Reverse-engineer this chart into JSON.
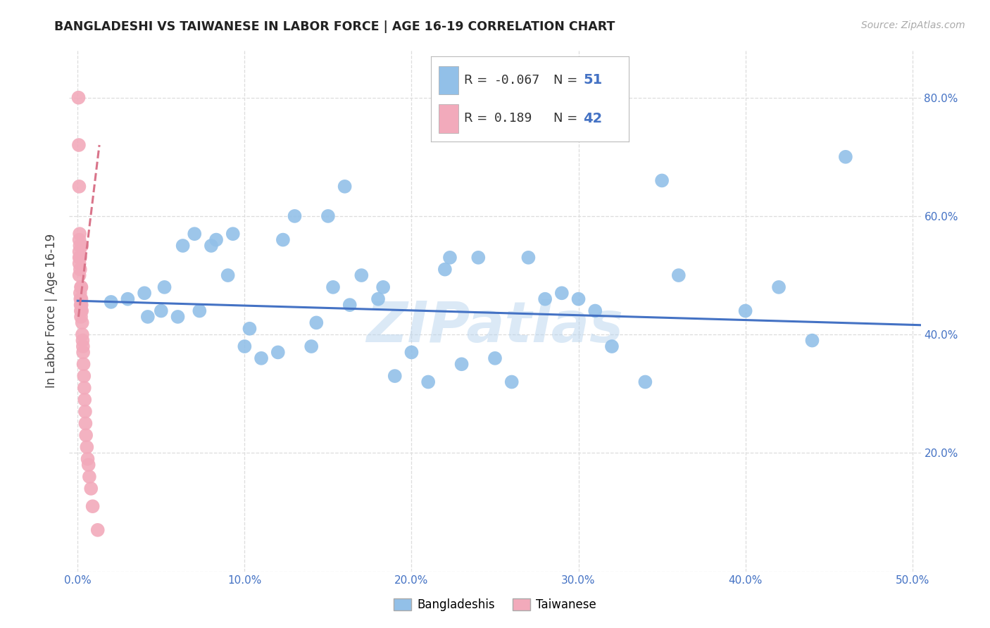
{
  "title": "BANGLADESHI VS TAIWANESE IN LABOR FORCE | AGE 16-19 CORRELATION CHART",
  "source": "Source: ZipAtlas.com",
  "ylabel": "In Labor Force | Age 16-19",
  "xlim": [
    -0.005,
    0.505
  ],
  "ylim": [
    0.0,
    0.88
  ],
  "xtick_vals": [
    0.0,
    0.1,
    0.2,
    0.3,
    0.4,
    0.5
  ],
  "xtick_labels": [
    "0.0%",
    "10.0%",
    "20.0%",
    "30.0%",
    "40.0%",
    "50.0%"
  ],
  "ytick_vals": [
    0.0,
    0.2,
    0.4,
    0.6,
    0.8
  ],
  "ytick_labels_right": [
    "",
    "20.0%",
    "40.0%",
    "60.0%",
    "80.0%"
  ],
  "blue_color": "#92C0E8",
  "pink_color": "#F2AABB",
  "blue_line_color": "#4472C4",
  "pink_line_color": "#D9748A",
  "grid_color": "#DDDDDD",
  "background_color": "#FFFFFF",
  "watermark": "ZIPatlas",
  "legend_R_blue": "-0.067",
  "legend_N_blue": "51",
  "legend_R_pink": "0.189",
  "legend_N_pink": "42",
  "blue_scatter_x": [
    0.02,
    0.03,
    0.04,
    0.042,
    0.05,
    0.052,
    0.06,
    0.063,
    0.07,
    0.073,
    0.08,
    0.083,
    0.09,
    0.093,
    0.1,
    0.103,
    0.11,
    0.12,
    0.123,
    0.13,
    0.14,
    0.143,
    0.15,
    0.153,
    0.16,
    0.163,
    0.17,
    0.18,
    0.183,
    0.19,
    0.2,
    0.21,
    0.22,
    0.223,
    0.23,
    0.24,
    0.25,
    0.26,
    0.27,
    0.28,
    0.29,
    0.3,
    0.31,
    0.32,
    0.34,
    0.35,
    0.36,
    0.4,
    0.42,
    0.44,
    0.46
  ],
  "blue_scatter_y": [
    0.455,
    0.46,
    0.47,
    0.43,
    0.44,
    0.48,
    0.43,
    0.55,
    0.57,
    0.44,
    0.55,
    0.56,
    0.5,
    0.57,
    0.38,
    0.41,
    0.36,
    0.37,
    0.56,
    0.6,
    0.38,
    0.42,
    0.6,
    0.48,
    0.65,
    0.45,
    0.5,
    0.46,
    0.48,
    0.33,
    0.37,
    0.32,
    0.51,
    0.53,
    0.35,
    0.53,
    0.36,
    0.32,
    0.53,
    0.46,
    0.47,
    0.46,
    0.44,
    0.38,
    0.32,
    0.66,
    0.5,
    0.44,
    0.48,
    0.39,
    0.7
  ],
  "pink_scatter_x": [
    0.0005,
    0.0007,
    0.0009,
    0.001,
    0.001,
    0.001,
    0.001,
    0.001,
    0.0012,
    0.0013,
    0.0015,
    0.0015,
    0.0015,
    0.0017,
    0.0018,
    0.0019,
    0.002,
    0.002,
    0.0022,
    0.0022,
    0.0023,
    0.0025,
    0.0025,
    0.0027,
    0.0028,
    0.003,
    0.0032,
    0.0033,
    0.0035,
    0.0038,
    0.004,
    0.0042,
    0.0045,
    0.0047,
    0.005,
    0.0055,
    0.006,
    0.0065,
    0.007,
    0.008,
    0.009,
    0.012
  ],
  "pink_scatter_y": [
    0.8,
    0.72,
    0.65,
    0.56,
    0.54,
    0.53,
    0.52,
    0.5,
    0.57,
    0.55,
    0.53,
    0.51,
    0.47,
    0.46,
    0.45,
    0.44,
    0.48,
    0.43,
    0.48,
    0.46,
    0.45,
    0.55,
    0.44,
    0.42,
    0.4,
    0.39,
    0.38,
    0.37,
    0.35,
    0.33,
    0.31,
    0.29,
    0.27,
    0.25,
    0.23,
    0.21,
    0.19,
    0.18,
    0.16,
    0.14,
    0.11,
    0.07
  ],
  "blue_trend_x": [
    0.0,
    0.505
  ],
  "blue_trend_y": [
    0.457,
    0.416
  ],
  "pink_trend_x": [
    0.0005,
    0.013
  ],
  "pink_trend_y": [
    0.43,
    0.72
  ]
}
